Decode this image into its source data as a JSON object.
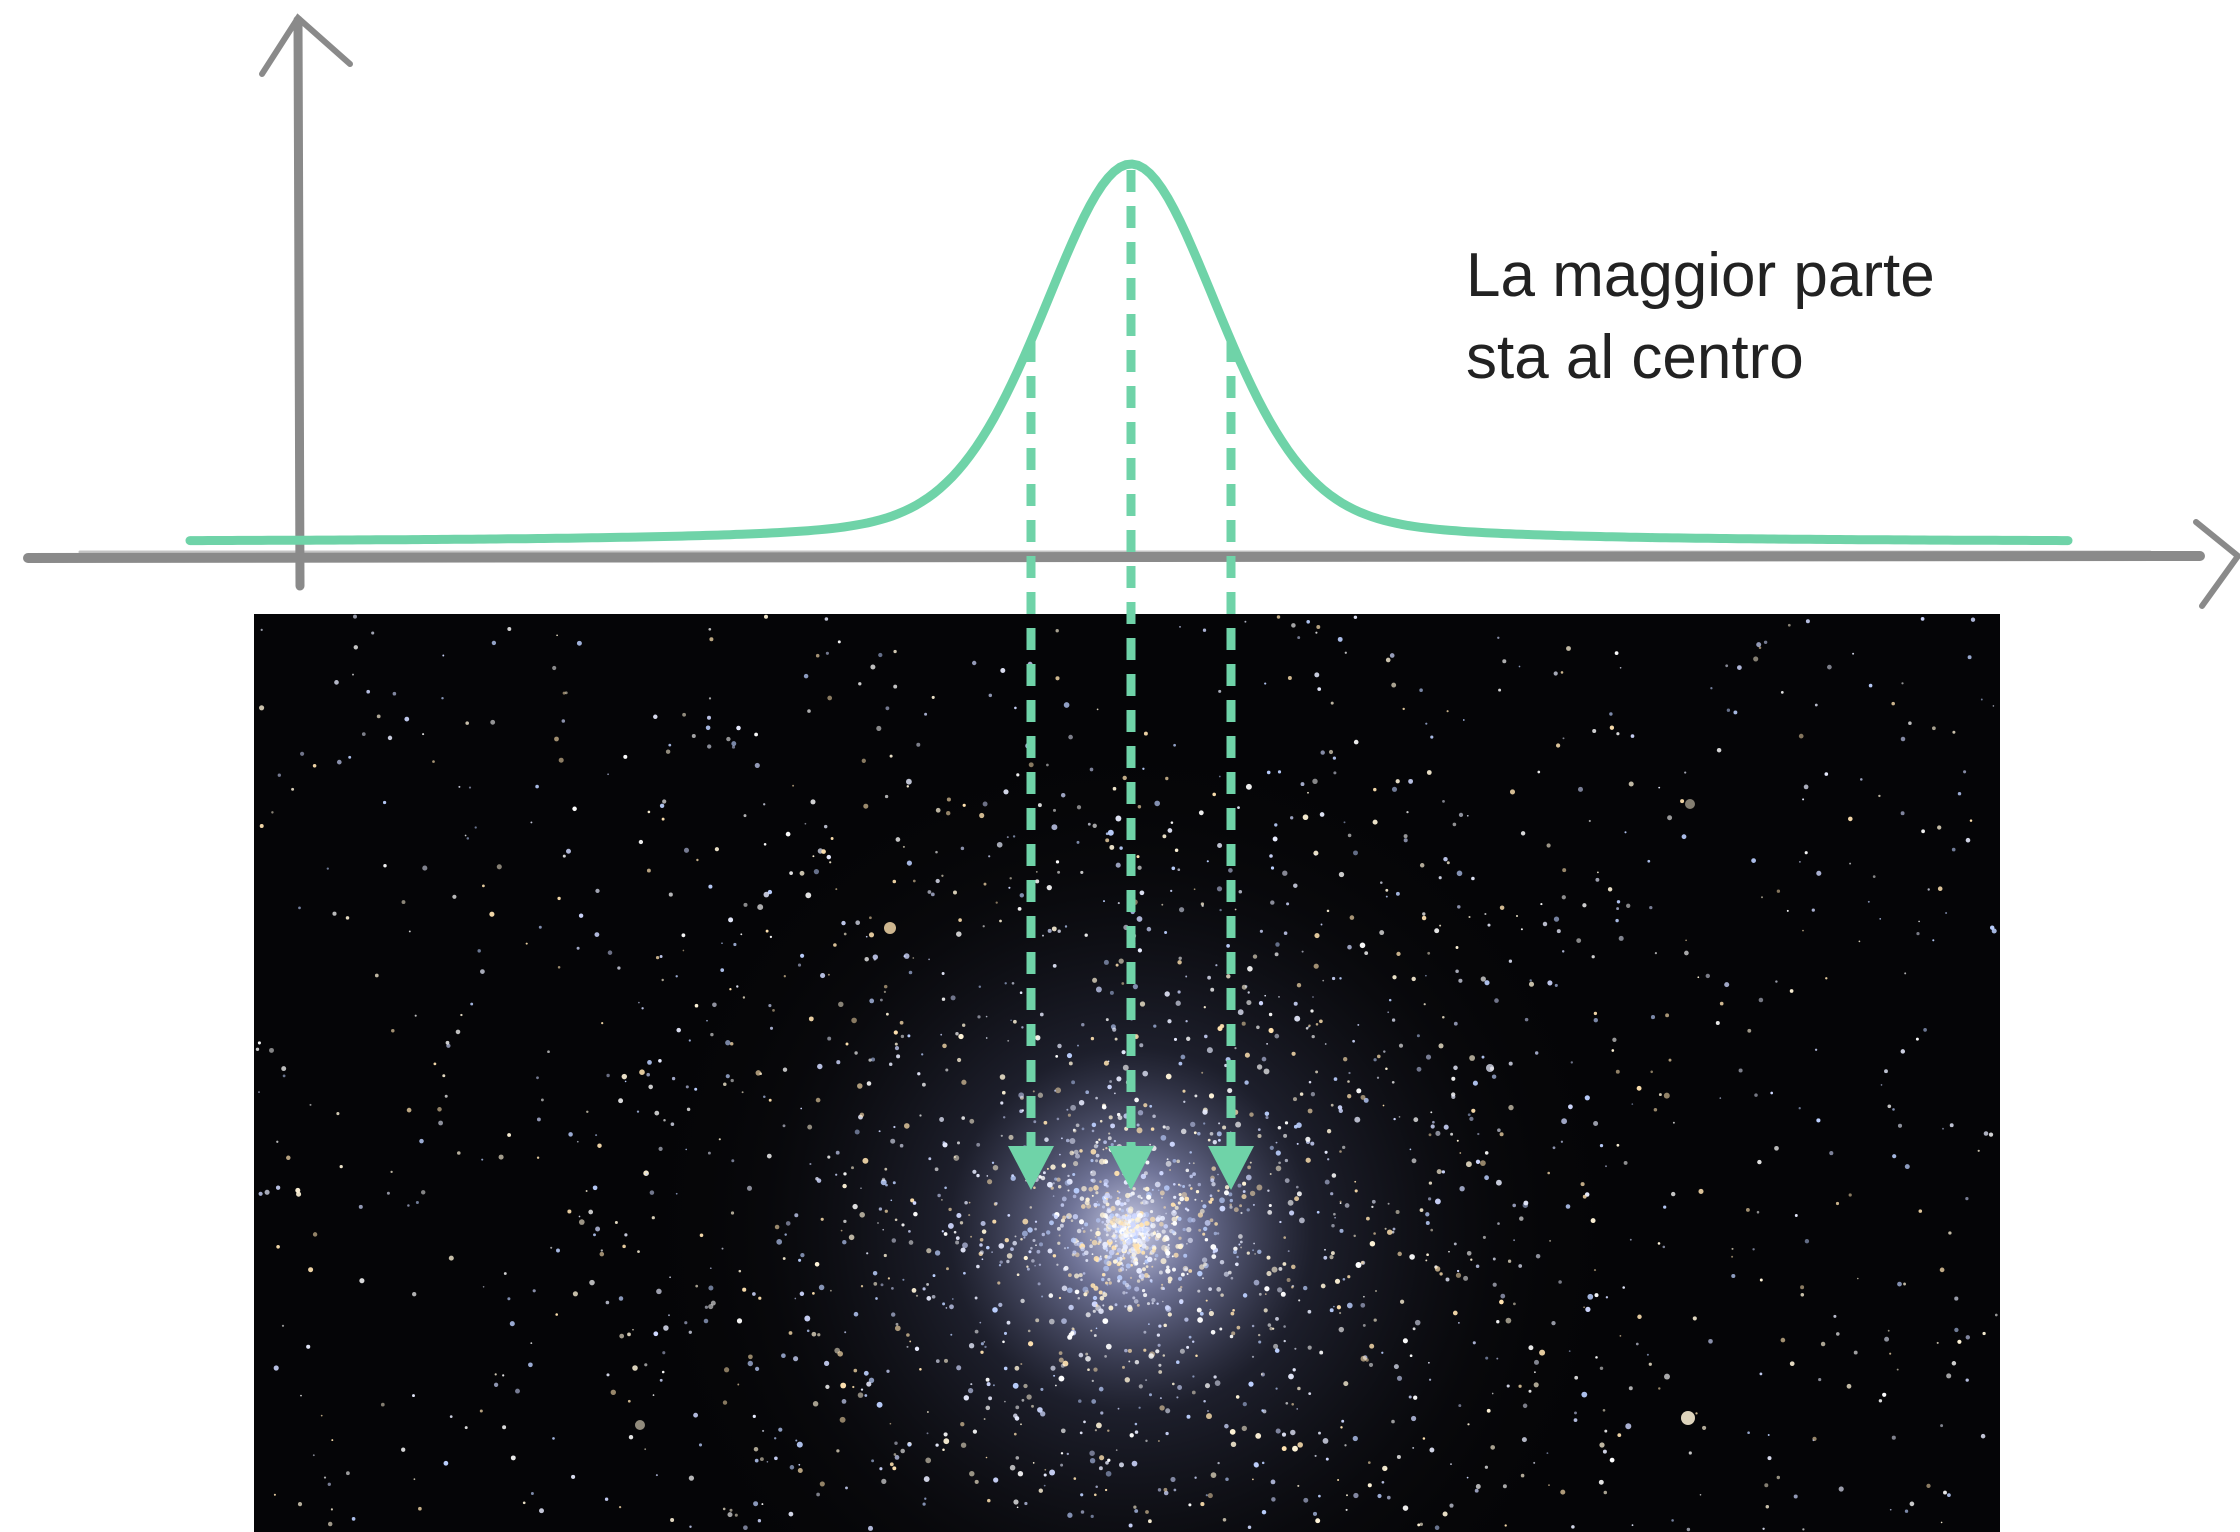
{
  "annotation": {
    "lines": [
      "La maggior parte",
      "sta al centro"
    ]
  }
}
